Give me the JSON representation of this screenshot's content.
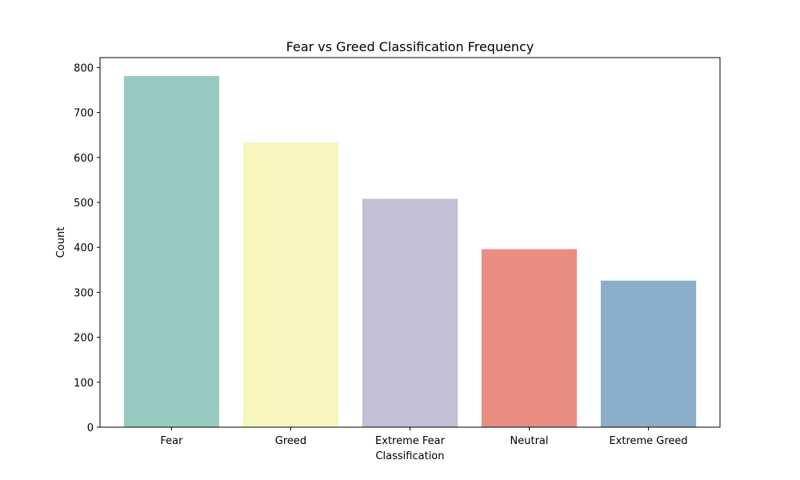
{
  "chart_data": {
    "type": "bar",
    "title": "Fear vs Greed Classification Frequency",
    "xlabel": "Classification",
    "ylabel": "Count",
    "categories": [
      "Fear",
      "Greed",
      "Extreme Fear",
      "Neutral",
      "Extreme Greed"
    ],
    "values": [
      781,
      633,
      508,
      396,
      326
    ],
    "colors": [
      "#99cac1",
      "#f6f6bc",
      "#c1bed6",
      "#e98d83",
      "#8aaec9"
    ],
    "ylim": [
      0,
      822
    ],
    "yticks": [
      0,
      100,
      200,
      300,
      400,
      500,
      600,
      700,
      800
    ],
    "grid": false,
    "legend": "none"
  }
}
